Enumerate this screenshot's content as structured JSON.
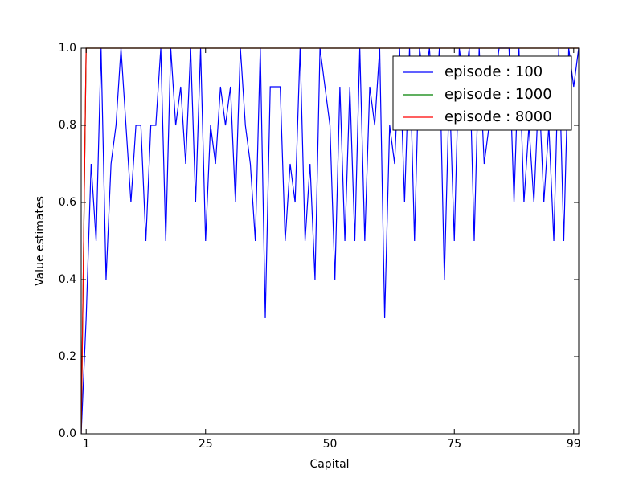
{
  "chart_data": {
    "type": "line",
    "xlabel": "Capital",
    "ylabel": "Value estimates",
    "x": [
      0,
      1,
      2,
      3,
      4,
      5,
      6,
      7,
      8,
      9,
      10,
      11,
      12,
      13,
      14,
      15,
      16,
      17,
      18,
      19,
      20,
      21,
      22,
      23,
      24,
      25,
      26,
      27,
      28,
      29,
      30,
      31,
      32,
      33,
      34,
      35,
      36,
      37,
      38,
      39,
      40,
      41,
      42,
      43,
      44,
      45,
      46,
      47,
      48,
      49,
      50,
      51,
      52,
      53,
      54,
      55,
      56,
      57,
      58,
      59,
      60,
      61,
      62,
      63,
      64,
      65,
      66,
      67,
      68,
      69,
      70,
      71,
      72,
      73,
      74,
      75,
      76,
      77,
      78,
      79,
      80,
      81,
      82,
      83,
      84,
      85,
      86,
      87,
      88,
      89,
      90,
      91,
      92,
      93,
      94,
      95,
      96,
      97,
      98,
      99,
      100
    ],
    "series": [
      {
        "name": "episode : 100",
        "color": "#0000ff",
        "values": [
          0,
          0.3,
          0.7,
          0.5,
          1.0,
          0.4,
          0.7,
          0.8,
          1.0,
          0.8,
          0.6,
          0.8,
          0.8,
          0.5,
          0.8,
          0.8,
          1.0,
          0.5,
          1.0,
          0.8,
          0.9,
          0.7,
          1.0,
          0.6,
          1.0,
          0.5,
          0.8,
          0.7,
          0.9,
          0.8,
          0.9,
          0.6,
          1.0,
          0.8,
          0.7,
          0.5,
          1.0,
          0.3,
          0.9,
          0.9,
          0.9,
          0.5,
          0.7,
          0.6,
          1.0,
          0.5,
          0.7,
          0.4,
          1.0,
          0.9,
          0.8,
          0.4,
          0.9,
          0.5,
          0.9,
          0.5,
          1.0,
          0.5,
          0.9,
          0.8,
          1.0,
          0.3,
          0.8,
          0.7,
          1.0,
          0.6,
          1.0,
          0.5,
          1.0,
          0.9,
          1.0,
          0.8,
          1.0,
          0.4,
          0.9,
          0.5,
          1.0,
          0.9,
          1.0,
          0.5,
          1.0,
          0.7,
          0.8,
          0.9,
          1.0,
          1.0,
          1.0,
          0.6,
          1.0,
          0.6,
          0.8,
          0.6,
          0.9,
          0.6,
          0.8,
          0.5,
          1.0,
          0.5,
          1.0,
          0.9,
          1.0
        ]
      },
      {
        "name": "episode : 1000",
        "color": "#008000",
        "values": [
          0,
          1,
          1,
          1,
          1,
          1,
          1,
          1,
          1,
          1,
          1,
          1,
          1,
          1,
          1,
          1,
          1,
          1,
          1,
          1,
          1,
          1,
          1,
          1,
          1,
          1,
          1,
          1,
          1,
          1,
          1,
          1,
          1,
          1,
          1,
          1,
          1,
          1,
          1,
          1,
          1,
          1,
          1,
          1,
          1,
          1,
          1,
          1,
          1,
          1,
          1,
          1,
          1,
          1,
          1,
          1,
          1,
          1,
          1,
          1,
          1,
          1,
          1,
          1,
          1,
          1,
          1,
          1,
          1,
          1,
          1,
          1,
          1,
          1,
          1,
          1,
          1,
          1,
          1,
          1,
          1,
          1,
          1,
          1,
          1,
          1,
          1,
          1,
          1,
          1,
          1,
          1,
          1,
          1,
          1,
          1,
          1,
          1,
          1,
          1,
          1
        ]
      },
      {
        "name": "episode : 8000",
        "color": "#ff0000",
        "values": [
          0,
          1,
          1,
          1,
          1,
          1,
          1,
          1,
          1,
          1,
          1,
          1,
          1,
          1,
          1,
          1,
          1,
          1,
          1,
          1,
          1,
          1,
          1,
          1,
          1,
          1,
          1,
          1,
          1,
          1,
          1,
          1,
          1,
          1,
          1,
          1,
          1,
          1,
          1,
          1,
          1,
          1,
          1,
          1,
          1,
          1,
          1,
          1,
          1,
          1,
          1,
          1,
          1,
          1,
          1,
          1,
          1,
          1,
          1,
          1,
          1,
          1,
          1,
          1,
          1,
          1,
          1,
          1,
          1,
          1,
          1,
          1,
          1,
          1,
          1,
          1,
          1,
          1,
          1,
          1,
          1,
          1,
          1,
          1,
          1,
          1,
          1,
          1,
          1,
          1,
          1,
          1,
          1,
          1,
          1,
          1,
          1,
          1,
          1,
          1,
          1
        ]
      }
    ],
    "xlim": [
      0,
      100
    ],
    "xticks": [
      1,
      25,
      50,
      75,
      99
    ],
    "ylim": [
      0,
      1
    ],
    "yticks": [
      {
        "value": 0,
        "label": "0.0"
      },
      0.2,
      0.4,
      0.6,
      0.8,
      {
        "value": 1,
        "label": "1.0"
      }
    ],
    "legend": "upper right"
  }
}
